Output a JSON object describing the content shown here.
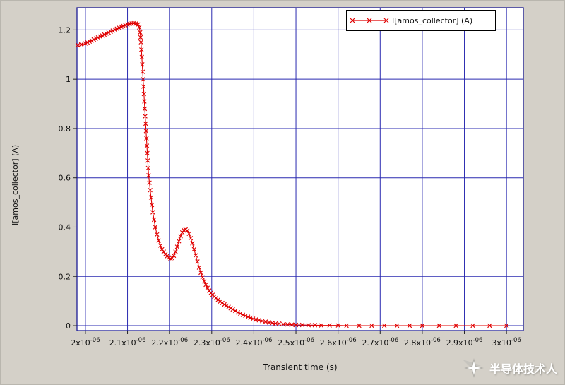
{
  "page": {
    "background": "#d4d0c8"
  },
  "chart_data": {
    "type": "line",
    "title": "",
    "xlabel": "Transient time (s)",
    "ylabel": "I[amos_collector] (A)",
    "grid": true,
    "grid_color": "#2a2ab0",
    "frame_color": "#1c1c96",
    "tick_color": "#222222",
    "legend_position": "top-right",
    "x_unit_multiplier": 1e-06,
    "xlim_us": [
      1.98,
      3.04
    ],
    "ylim": [
      -0.02,
      1.29
    ],
    "x_ticks": [
      {
        "value": 2.0,
        "label": "2x10^-06"
      },
      {
        "value": 2.1,
        "label": "2.1x10^-06"
      },
      {
        "value": 2.2,
        "label": "2.2x10^-06"
      },
      {
        "value": 2.3,
        "label": "2.3x10^-06"
      },
      {
        "value": 2.4,
        "label": "2.4x10^-06"
      },
      {
        "value": 2.5,
        "label": "2.5x10^-06"
      },
      {
        "value": 2.6,
        "label": "2.6x10^-06"
      },
      {
        "value": 2.7,
        "label": "2.7x10^-06"
      },
      {
        "value": 2.8,
        "label": "2.8x10^-06"
      },
      {
        "value": 2.9,
        "label": "2.9x10^-06"
      },
      {
        "value": 3.0,
        "label": "3x10^-06"
      }
    ],
    "y_ticks": [
      {
        "value": 0,
        "label": "0"
      },
      {
        "value": 0.2,
        "label": "0.2"
      },
      {
        "value": 0.4,
        "label": "0.4"
      },
      {
        "value": 0.6,
        "label": "0.6"
      },
      {
        "value": 0.8,
        "label": "0.8"
      },
      {
        "value": 1.0,
        "label": "1"
      },
      {
        "value": 1.2,
        "label": "1.2"
      }
    ],
    "series": [
      {
        "name": "I[amos_collector] (A)",
        "color": "#e00000",
        "marker": "x",
        "points_us": [
          [
            1.982,
            1.138
          ],
          [
            1.99,
            1.141
          ],
          [
            2.0,
            1.145
          ],
          [
            2.005,
            1.149
          ],
          [
            2.01,
            1.153
          ],
          [
            2.015,
            1.157
          ],
          [
            2.02,
            1.161
          ],
          [
            2.025,
            1.165
          ],
          [
            2.03,
            1.169
          ],
          [
            2.035,
            1.173
          ],
          [
            2.04,
            1.177
          ],
          [
            2.045,
            1.181
          ],
          [
            2.05,
            1.185
          ],
          [
            2.055,
            1.189
          ],
          [
            2.06,
            1.193
          ],
          [
            2.065,
            1.197
          ],
          [
            2.07,
            1.201
          ],
          [
            2.075,
            1.205
          ],
          [
            2.08,
            1.209
          ],
          [
            2.085,
            1.213
          ],
          [
            2.09,
            1.216
          ],
          [
            2.095,
            1.219
          ],
          [
            2.1,
            1.222
          ],
          [
            2.105,
            1.224
          ],
          [
            2.11,
            1.226
          ],
          [
            2.115,
            1.227
          ],
          [
            2.12,
            1.226
          ],
          [
            2.125,
            1.222
          ],
          [
            2.128,
            1.21
          ],
          [
            2.13,
            1.19
          ],
          [
            2.131,
            1.17
          ],
          [
            2.132,
            1.15
          ],
          [
            2.133,
            1.12
          ],
          [
            2.134,
            1.09
          ],
          [
            2.135,
            1.06
          ],
          [
            2.136,
            1.03
          ],
          [
            2.137,
            1.0
          ],
          [
            2.138,
            0.97
          ],
          [
            2.139,
            0.94
          ],
          [
            2.14,
            0.91
          ],
          [
            2.141,
            0.88
          ],
          [
            2.142,
            0.85
          ],
          [
            2.143,
            0.82
          ],
          [
            2.144,
            0.79
          ],
          [
            2.145,
            0.76
          ],
          [
            2.146,
            0.73
          ],
          [
            2.147,
            0.7
          ],
          [
            2.148,
            0.67
          ],
          [
            2.149,
            0.64
          ],
          [
            2.15,
            0.61
          ],
          [
            2.152,
            0.58
          ],
          [
            2.154,
            0.55
          ],
          [
            2.156,
            0.52
          ],
          [
            2.158,
            0.49
          ],
          [
            2.16,
            0.46
          ],
          [
            2.163,
            0.43
          ],
          [
            2.166,
            0.4
          ],
          [
            2.17,
            0.37
          ],
          [
            2.174,
            0.345
          ],
          [
            2.178,
            0.325
          ],
          [
            2.182,
            0.31
          ],
          [
            2.186,
            0.3
          ],
          [
            2.19,
            0.29
          ],
          [
            2.194,
            0.282
          ],
          [
            2.198,
            0.276
          ],
          [
            2.202,
            0.272
          ],
          [
            2.206,
            0.274
          ],
          [
            2.21,
            0.284
          ],
          [
            2.214,
            0.3
          ],
          [
            2.218,
            0.32
          ],
          [
            2.222,
            0.343
          ],
          [
            2.226,
            0.363
          ],
          [
            2.23,
            0.378
          ],
          [
            2.234,
            0.387
          ],
          [
            2.238,
            0.39
          ],
          [
            2.242,
            0.386
          ],
          [
            2.246,
            0.373
          ],
          [
            2.25,
            0.355
          ],
          [
            2.254,
            0.334
          ],
          [
            2.258,
            0.31
          ],
          [
            2.262,
            0.285
          ],
          [
            2.266,
            0.26
          ],
          [
            2.27,
            0.236
          ],
          [
            2.274,
            0.215
          ],
          [
            2.278,
            0.196
          ],
          [
            2.282,
            0.18
          ],
          [
            2.286,
            0.166
          ],
          [
            2.29,
            0.153
          ],
          [
            2.294,
            0.142
          ],
          [
            2.298,
            0.133
          ],
          [
            2.302,
            0.125
          ],
          [
            2.306,
            0.118
          ],
          [
            2.31,
            0.112
          ],
          [
            2.315,
            0.105
          ],
          [
            2.32,
            0.098
          ],
          [
            2.325,
            0.092
          ],
          [
            2.33,
            0.086
          ],
          [
            2.335,
            0.081
          ],
          [
            2.34,
            0.076
          ],
          [
            2.345,
            0.071
          ],
          [
            2.35,
            0.066
          ],
          [
            2.356,
            0.06
          ],
          [
            2.362,
            0.054
          ],
          [
            2.368,
            0.049
          ],
          [
            2.374,
            0.044
          ],
          [
            2.38,
            0.04
          ],
          [
            2.386,
            0.036
          ],
          [
            2.392,
            0.032
          ],
          [
            2.398,
            0.028
          ],
          [
            2.405,
            0.025
          ],
          [
            2.412,
            0.022
          ],
          [
            2.42,
            0.019
          ],
          [
            2.428,
            0.016
          ],
          [
            2.436,
            0.013
          ],
          [
            2.444,
            0.011
          ],
          [
            2.452,
            0.009
          ],
          [
            2.46,
            0.008
          ],
          [
            2.47,
            0.006
          ],
          [
            2.48,
            0.005
          ],
          [
            2.49,
            0.004
          ],
          [
            2.5,
            0.003
          ],
          [
            2.515,
            0.003
          ],
          [
            2.53,
            0.002
          ],
          [
            2.545,
            0.002
          ],
          [
            2.56,
            0.001
          ],
          [
            2.58,
            0.001
          ],
          [
            2.6,
            0.001
          ],
          [
            2.62,
            0.0
          ],
          [
            2.65,
            0.0
          ],
          [
            2.68,
            0.0
          ],
          [
            2.71,
            0.0
          ],
          [
            2.74,
            0.0
          ],
          [
            2.77,
            0.0
          ],
          [
            2.8,
            0.0
          ],
          [
            2.84,
            0.0
          ],
          [
            2.88,
            0.0
          ],
          [
            2.92,
            0.0
          ],
          [
            2.96,
            0.0
          ],
          [
            3.0,
            0.0
          ]
        ]
      }
    ]
  },
  "watermark": {
    "text": "半导体技术人"
  }
}
